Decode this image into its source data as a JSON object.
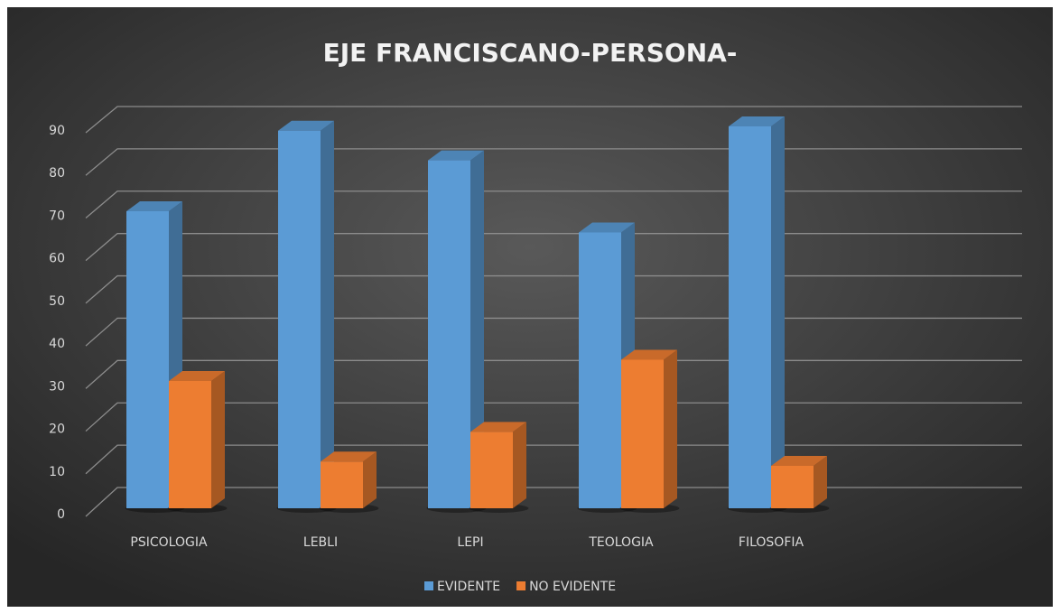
{
  "chart_data": {
    "type": "bar",
    "title": "EJE FRANCISCANO-PERSONA-",
    "categories": [
      "PSICOLOGIA",
      "LEBLI",
      "LEPI",
      "TEOLOGIA",
      "FILOSOFIA"
    ],
    "series": [
      {
        "name": "EVIDENTE",
        "color": "#5b9bd5",
        "values": [
          70,
          89,
          82,
          65,
          90
        ]
      },
      {
        "name": "NO EVIDENTE",
        "color": "#ed7d31",
        "values": [
          30,
          11,
          18,
          35,
          10
        ]
      }
    ],
    "ylim": [
      0,
      90
    ],
    "yticks": [
      0,
      10,
      20,
      30,
      40,
      50,
      60,
      70,
      80,
      90
    ],
    "grid": true,
    "legend": "bottom"
  }
}
